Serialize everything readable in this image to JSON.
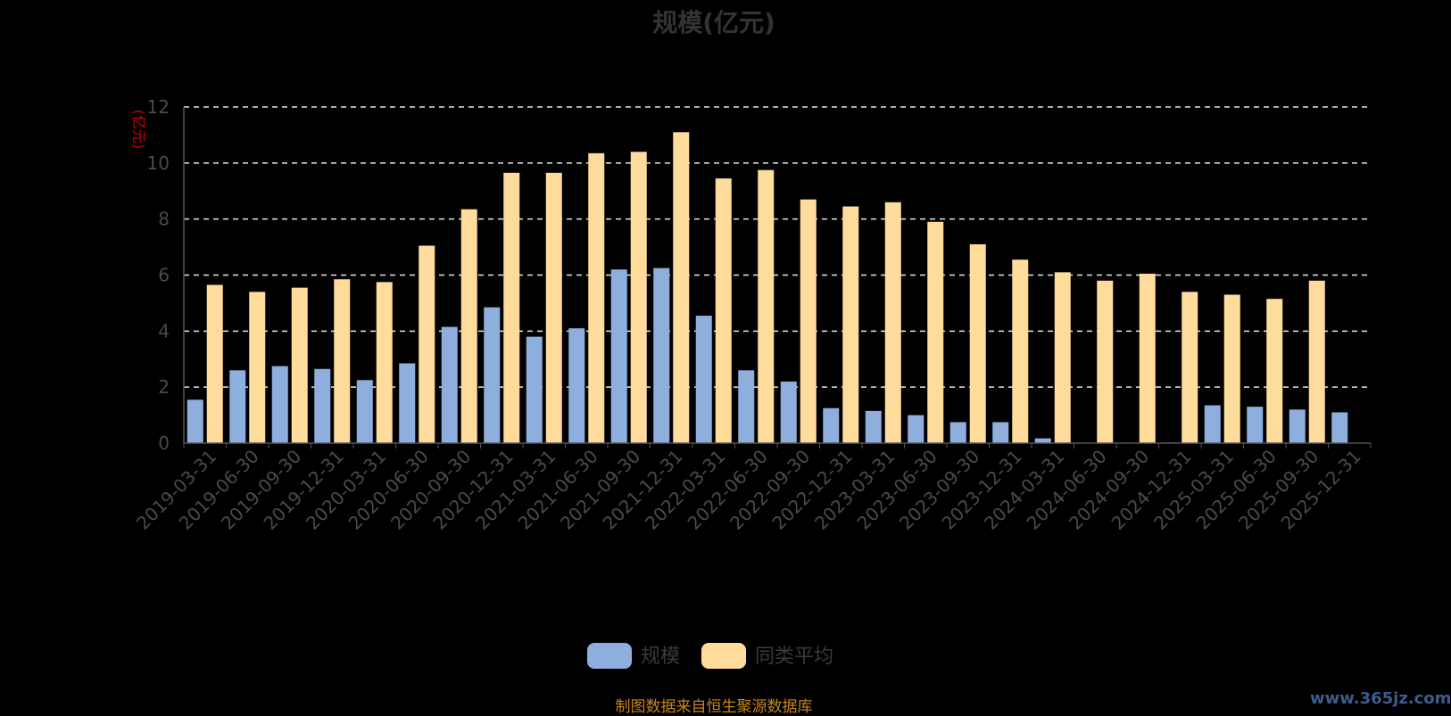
{
  "chart_data": {
    "type": "bar",
    "title": "规模(亿元)",
    "ylabel": "(亿元)",
    "ylim": [
      0,
      12
    ],
    "yticks": [
      0,
      2,
      4,
      6,
      8,
      10,
      12
    ],
    "grid": true,
    "legend_position": "bottom",
    "categories": [
      "2019-03-31",
      "2019-06-30",
      "2019-09-30",
      "2019-12-31",
      "2020-03-31",
      "2020-06-30",
      "2020-09-30",
      "2020-12-31",
      "2021-03-31",
      "2021-06-30",
      "2021-09-30",
      "2021-12-31",
      "2022-03-31",
      "2022-06-30",
      "2022-09-30",
      "2022-12-31",
      "2023-03-31",
      "2023-06-30",
      "2023-09-30",
      "2023-12-31",
      "2024-03-31",
      "2024-06-30",
      "2024-09-30",
      "2024-12-31",
      "2025-03-31",
      "2025-06-30",
      "2025-09-30",
      "2025-12-31"
    ],
    "series": [
      {
        "name": "规模",
        "color": "#8eaedd",
        "values": [
          1.55,
          2.6,
          2.75,
          2.65,
          2.25,
          2.85,
          4.15,
          4.85,
          3.8,
          4.1,
          6.2,
          6.25,
          4.55,
          2.6,
          2.2,
          1.25,
          1.15,
          1.0,
          0.75,
          0.75,
          0.17,
          0,
          0,
          0.02,
          1.35,
          1.3,
          1.2,
          1.1
        ]
      },
      {
        "name": "同类平均",
        "color": "#ffdb9c",
        "values": [
          5.65,
          5.4,
          5.55,
          5.85,
          5.75,
          7.05,
          8.35,
          9.65,
          9.65,
          10.35,
          10.4,
          11.1,
          9.45,
          9.75,
          8.7,
          8.45,
          8.6,
          7.9,
          7.1,
          6.55,
          6.1,
          5.8,
          6.05,
          5.4,
          5.3,
          5.15,
          5.8,
          null
        ]
      }
    ]
  },
  "footer": "制图数据来自恒生聚源数据库",
  "watermark": "www.365jz.com"
}
